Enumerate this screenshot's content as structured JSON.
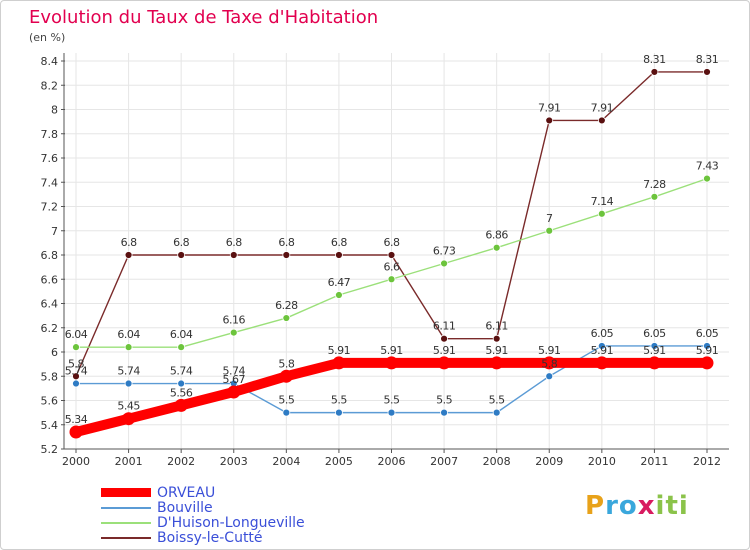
{
  "title": "Evolution du Taux de Taxe d'Habitation",
  "subtitle": "(en %)",
  "logo": {
    "letters": [
      "P",
      "r",
      "o",
      "x",
      "i",
      "t",
      "i"
    ],
    "colors": [
      "#e8a21a",
      "#3aa7dc",
      "#3aa7dc",
      "#d81b60",
      "#8bc34a",
      "#8bc34a",
      "#8bc34a"
    ]
  },
  "chart_data": {
    "type": "line",
    "x": [
      "2000",
      "2001",
      "2002",
      "2003",
      "2004",
      "2005",
      "2006",
      "2007",
      "2008",
      "2009",
      "2010",
      "2011",
      "2012"
    ],
    "ylim": [
      5.2,
      8.4
    ],
    "yticks": [
      "5.2",
      "5.4",
      "5.6",
      "5.8",
      "6",
      "6.2",
      "6.4",
      "6.6",
      "6.8",
      "7",
      "7.2",
      "7.4",
      "7.6",
      "7.8",
      "8",
      "8.2",
      "8.4"
    ],
    "grid": true,
    "legend_position": "bottom-left",
    "series": [
      {
        "name": "ORVEAU",
        "color": "#ff0000",
        "marker_color": "#ff0000",
        "values": [
          5.34,
          5.45,
          5.56,
          5.67,
          5.8,
          5.91,
          5.91,
          5.91,
          5.91,
          5.91,
          5.91,
          5.91,
          5.91
        ],
        "labels": [
          "5.34",
          "5.45",
          "5.56",
          "5.67",
          "5.8",
          "5.91",
          "5.91",
          "5.91",
          "5.91",
          "5.91",
          "5.91",
          "5.91",
          "5.91"
        ]
      },
      {
        "name": "Bouville",
        "color": "#5b9bd5",
        "marker_color": "#2e7bc4",
        "values": [
          5.74,
          5.74,
          5.74,
          5.74,
          5.5,
          5.5,
          5.5,
          5.5,
          5.5,
          5.8,
          6.05,
          6.05,
          6.05
        ],
        "labels": [
          "5.74",
          "5.74",
          "5.74",
          "5.74",
          "5.5",
          "5.5",
          "5.5",
          "5.5",
          "5.5",
          "5.8",
          "6.05",
          "6.05",
          "6.05"
        ]
      },
      {
        "name": "D'Huison-Longueville",
        "color": "#9be07a",
        "marker_color": "#6cc43c",
        "values": [
          6.04,
          6.04,
          6.04,
          6.16,
          6.28,
          6.47,
          6.6,
          6.73,
          6.86,
          7.0,
          7.14,
          7.28,
          7.43
        ],
        "labels": [
          "6.04",
          "6.04",
          "6.04",
          "6.16",
          "6.28",
          "6.47",
          "6.6",
          "6.73",
          "6.86",
          "7",
          "7.14",
          "7.28",
          "7.43"
        ]
      },
      {
        "name": "Boissy-le-Cutté",
        "color": "#7a2a2a",
        "marker_color": "#5a1010",
        "values": [
          5.8,
          6.8,
          6.8,
          6.8,
          6.8,
          6.8,
          6.8,
          6.11,
          6.11,
          7.91,
          7.91,
          8.31,
          8.31
        ],
        "labels": [
          "5.8",
          "6.8",
          "6.8",
          "6.8",
          "6.8",
          "6.8",
          "6.8",
          "6.11",
          "6.11",
          "7.91",
          "7.91",
          "8.31",
          "8.31"
        ]
      }
    ]
  }
}
